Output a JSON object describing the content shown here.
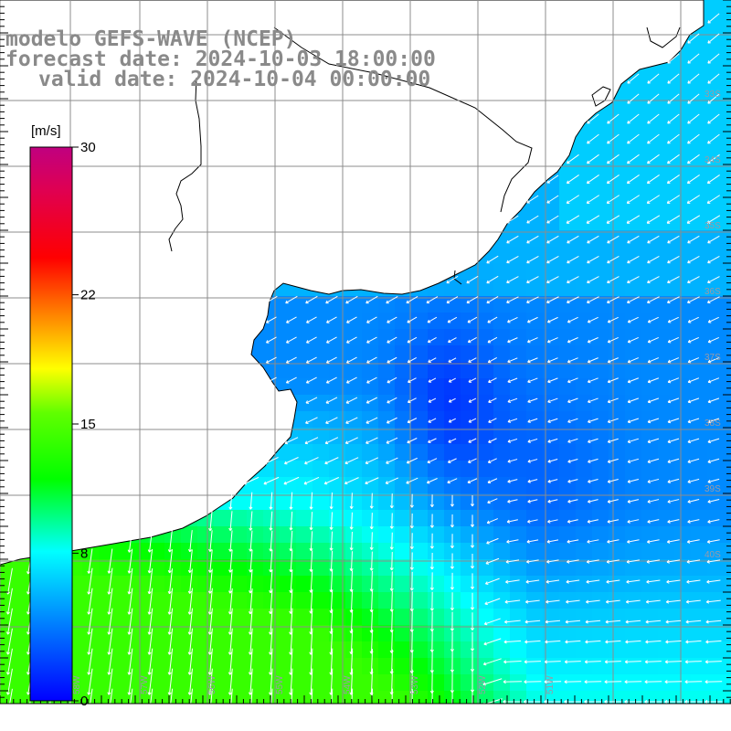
{
  "title": {
    "model": "modelo GEFS-WAVE (NCEP)",
    "forecast": "forecast date: 2024-10-03 18:00:00",
    "valid": "valid date: 2024-10-04 00:00:00"
  },
  "colorbar": {
    "unit": "[m/s]",
    "ticks": [
      {
        "value": 30,
        "label": "30"
      },
      {
        "value": 22,
        "label": "22"
      },
      {
        "value": 15,
        "label": "15"
      },
      {
        "value": 8,
        "label": "8"
      },
      {
        "value": 0,
        "label": "0"
      }
    ],
    "range": [
      0,
      30
    ],
    "colors": [
      "#0000ff",
      "#0080ff",
      "#00ffff",
      "#00ff00",
      "#ffff00",
      "#ff8000",
      "#ff0000",
      "#c00080"
    ]
  },
  "lat_labels": [
    "33S",
    "34S",
    "35S",
    "36S",
    "37S",
    "38S",
    "39S",
    "40S"
  ],
  "lon_labels": [
    "58W",
    "57W",
    "56W",
    "55W",
    "54W",
    "53W",
    "52W",
    "51W"
  ],
  "colors": {
    "land": "#ffffff",
    "coastline": "#000000",
    "grid": "#8c8c8c",
    "arrows": "#ffffff",
    "title_text": "#8a8a8a"
  }
}
